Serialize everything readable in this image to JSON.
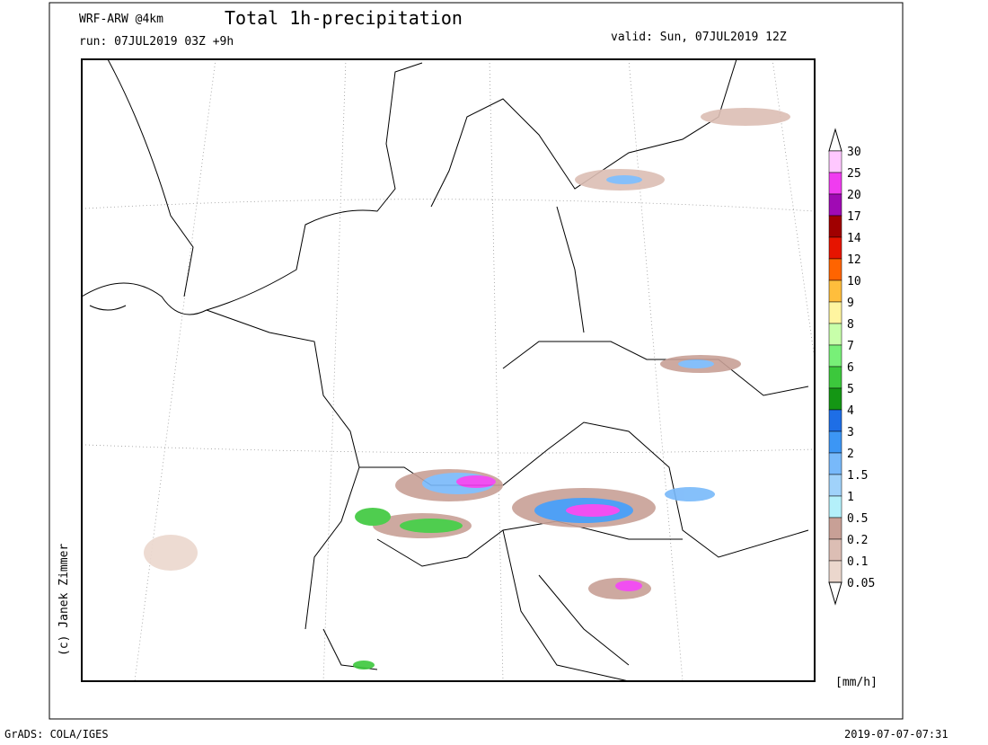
{
  "header": {
    "model": "WRF-ARW @4km",
    "title": "Total 1h-precipitation",
    "run": "run: 07JUL2019 03Z +9h",
    "valid": "valid: Sun, 07JUL2019 12Z"
  },
  "legend": {
    "levels": [
      30,
      25,
      20,
      17,
      14,
      12,
      10,
      9,
      8,
      7,
      6,
      5,
      4,
      3,
      2,
      1.5,
      1,
      0.5,
      0.2,
      0.1,
      0.05
    ],
    "colors": [
      "#ffc8ff",
      "#f03cf0",
      "#a00ab4",
      "#a00000",
      "#e61400",
      "#ff6400",
      "#ffbe3c",
      "#fff5a0",
      "#c8ffaa",
      "#78f078",
      "#3cc83c",
      "#149614",
      "#1e6ee6",
      "#3c96f5",
      "#78b9fa",
      "#a0d2fa",
      "#b4f0fa",
      "#c8a096",
      "#dcbeb4",
      "#ebd7cd"
    ],
    "unit": "[mm/h]"
  },
  "credit": "(c) Janek Zimmer",
  "footer": {
    "left": "GrADS: COLA/IGES",
    "right": "2019-07-07-07:31"
  }
}
